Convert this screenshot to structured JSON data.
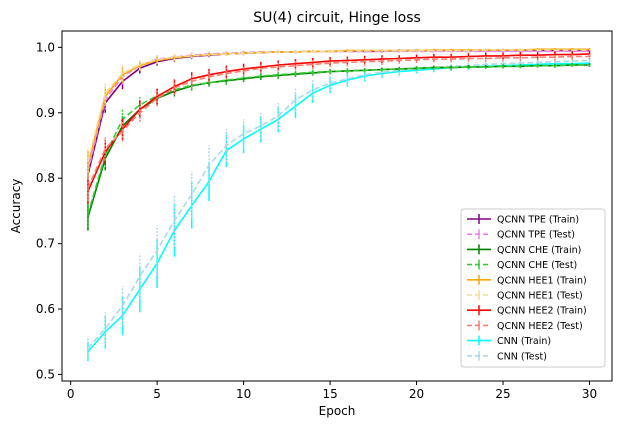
{
  "chart_data": {
    "type": "line",
    "title": "SU(4) circuit, Hinge loss",
    "xlabel": "Epoch",
    "ylabel": "Accuracy",
    "xlim": [
      -0.5,
      31.3
    ],
    "ylim": [
      0.49,
      1.025
    ],
    "xticks": [
      0,
      5,
      10,
      15,
      20,
      25,
      30
    ],
    "yticks": [
      0.5,
      0.6,
      0.7,
      0.8,
      0.9,
      1.0
    ],
    "ytick_labels": [
      "0.5",
      "0.6",
      "0.7",
      "0.8",
      "0.9",
      "1.0"
    ],
    "legend_position": "lower-right",
    "x": [
      1,
      2,
      3,
      4,
      5,
      6,
      7,
      8,
      9,
      10,
      11,
      12,
      13,
      14,
      15,
      16,
      17,
      18,
      19,
      20,
      21,
      22,
      23,
      24,
      25,
      26,
      27,
      28,
      29,
      30
    ],
    "series": [
      {
        "name": "QCNN TPE (Train)",
        "color": "#800080",
        "dashed": false,
        "values": [
          0.805,
          0.915,
          0.948,
          0.968,
          0.978,
          0.983,
          0.986,
          0.988,
          0.99,
          0.991,
          0.992,
          0.993,
          0.993,
          0.994,
          0.994,
          0.994,
          0.994,
          0.994,
          0.995,
          0.995,
          0.995,
          0.995,
          0.995,
          0.995,
          0.995,
          0.995,
          0.995,
          0.995,
          0.995,
          0.995
        ],
        "errors": [
          0.02,
          0.015,
          0.012,
          0.008,
          0.006,
          0.005,
          0.004,
          0.003,
          0.003,
          0.003,
          0.002,
          0.002,
          0.002,
          0.002,
          0.002,
          0.002,
          0.002,
          0.002,
          0.002,
          0.002,
          0.002,
          0.002,
          0.002,
          0.002,
          0.002,
          0.002,
          0.002,
          0.002,
          0.002,
          0.002
        ]
      },
      {
        "name": "QCNN TPE (Test)",
        "color": "#ee82ee",
        "dashed": true,
        "values": [
          0.81,
          0.92,
          0.955,
          0.972,
          0.982,
          0.985,
          0.988,
          0.99,
          0.991,
          0.992,
          0.993,
          0.993,
          0.993,
          0.994,
          0.994,
          0.994,
          0.994,
          0.994,
          0.994,
          0.994,
          0.994,
          0.994,
          0.994,
          0.994,
          0.994,
          0.994,
          0.994,
          0.994,
          0.994,
          0.994
        ],
        "errors": [
          0.02,
          0.015,
          0.012,
          0.008,
          0.006,
          0.005,
          0.004,
          0.003,
          0.003,
          0.003,
          0.002,
          0.002,
          0.002,
          0.002,
          0.002,
          0.002,
          0.002,
          0.002,
          0.002,
          0.002,
          0.002,
          0.002,
          0.002,
          0.002,
          0.002,
          0.002,
          0.002,
          0.002,
          0.002,
          0.002
        ]
      },
      {
        "name": "QCNN CHE (Train)",
        "color": "#008000",
        "dashed": false,
        "values": [
          0.74,
          0.83,
          0.88,
          0.905,
          0.922,
          0.933,
          0.941,
          0.946,
          0.949,
          0.952,
          0.955,
          0.957,
          0.959,
          0.961,
          0.963,
          0.964,
          0.965,
          0.966,
          0.967,
          0.968,
          0.969,
          0.969,
          0.97,
          0.97,
          0.971,
          0.971,
          0.972,
          0.972,
          0.973,
          0.973
        ],
        "errors": [
          0.02,
          0.018,
          0.015,
          0.012,
          0.01,
          0.008,
          0.007,
          0.006,
          0.006,
          0.005,
          0.005,
          0.005,
          0.004,
          0.004,
          0.004,
          0.004,
          0.003,
          0.003,
          0.003,
          0.003,
          0.003,
          0.003,
          0.003,
          0.003,
          0.003,
          0.003,
          0.003,
          0.003,
          0.003,
          0.003
        ]
      },
      {
        "name": "QCNN CHE (Test)",
        "color": "#32cd32",
        "dashed": true,
        "values": [
          0.745,
          0.835,
          0.89,
          0.912,
          0.926,
          0.935,
          0.942,
          0.946,
          0.95,
          0.953,
          0.956,
          0.958,
          0.96,
          0.962,
          0.963,
          0.964,
          0.965,
          0.966,
          0.967,
          0.968,
          0.969,
          0.969,
          0.97,
          0.97,
          0.971,
          0.971,
          0.972,
          0.972,
          0.973,
          0.973
        ],
        "errors": [
          0.02,
          0.018,
          0.015,
          0.012,
          0.01,
          0.008,
          0.007,
          0.006,
          0.006,
          0.005,
          0.005,
          0.005,
          0.004,
          0.004,
          0.004,
          0.004,
          0.003,
          0.003,
          0.003,
          0.003,
          0.003,
          0.003,
          0.003,
          0.003,
          0.003,
          0.003,
          0.003,
          0.003,
          0.003,
          0.003
        ]
      },
      {
        "name": "QCNN HEE1 (Train)",
        "color": "#ffa500",
        "dashed": false,
        "values": [
          0.82,
          0.925,
          0.958,
          0.972,
          0.98,
          0.984,
          0.987,
          0.989,
          0.99,
          0.991,
          0.992,
          0.993,
          0.993,
          0.994,
          0.994,
          0.995,
          0.995,
          0.995,
          0.995,
          0.995,
          0.996,
          0.996,
          0.996,
          0.996,
          0.996,
          0.996,
          0.997,
          0.997,
          0.997,
          0.997
        ],
        "errors": [
          0.022,
          0.015,
          0.012,
          0.008,
          0.006,
          0.005,
          0.004,
          0.003,
          0.003,
          0.003,
          0.002,
          0.002,
          0.002,
          0.002,
          0.002,
          0.002,
          0.002,
          0.002,
          0.002,
          0.002,
          0.002,
          0.002,
          0.002,
          0.002,
          0.002,
          0.002,
          0.002,
          0.002,
          0.002,
          0.002
        ]
      },
      {
        "name": "QCNN HEE1 (Test)",
        "color": "#eedd99",
        "dashed": true,
        "values": [
          0.825,
          0.93,
          0.96,
          0.974,
          0.981,
          0.985,
          0.987,
          0.989,
          0.99,
          0.991,
          0.992,
          0.993,
          0.993,
          0.994,
          0.994,
          0.994,
          0.995,
          0.995,
          0.995,
          0.995,
          0.995,
          0.995,
          0.995,
          0.996,
          0.996,
          0.996,
          0.996,
          0.996,
          0.996,
          0.996
        ],
        "errors": [
          0.022,
          0.015,
          0.012,
          0.008,
          0.006,
          0.005,
          0.004,
          0.003,
          0.003,
          0.003,
          0.002,
          0.002,
          0.002,
          0.002,
          0.002,
          0.002,
          0.002,
          0.002,
          0.002,
          0.002,
          0.002,
          0.002,
          0.002,
          0.002,
          0.002,
          0.002,
          0.002,
          0.002,
          0.002,
          0.002
        ]
      },
      {
        "name": "QCNN HEE2 (Train)",
        "color": "#ff0000",
        "dashed": false,
        "values": [
          0.78,
          0.84,
          0.875,
          0.905,
          0.925,
          0.94,
          0.952,
          0.958,
          0.963,
          0.967,
          0.97,
          0.973,
          0.975,
          0.977,
          0.979,
          0.98,
          0.981,
          0.982,
          0.983,
          0.984,
          0.985,
          0.985,
          0.986,
          0.987,
          0.987,
          0.988,
          0.988,
          0.989,
          0.989,
          0.99
        ],
        "errors": [
          0.02,
          0.018,
          0.016,
          0.014,
          0.012,
          0.011,
          0.01,
          0.009,
          0.009,
          0.008,
          0.008,
          0.007,
          0.007,
          0.007,
          0.006,
          0.006,
          0.006,
          0.006,
          0.005,
          0.005,
          0.005,
          0.005,
          0.005,
          0.005,
          0.005,
          0.005,
          0.005,
          0.005,
          0.005,
          0.005
        ]
      },
      {
        "name": "QCNN HEE2 (Test)",
        "color": "#fa8072",
        "dashed": true,
        "values": [
          0.785,
          0.845,
          0.872,
          0.9,
          0.922,
          0.938,
          0.948,
          0.955,
          0.96,
          0.964,
          0.968,
          0.97,
          0.972,
          0.974,
          0.976,
          0.977,
          0.978,
          0.979,
          0.98,
          0.981,
          0.982,
          0.982,
          0.983,
          0.983,
          0.984,
          0.984,
          0.985,
          0.985,
          0.986,
          0.986
        ],
        "errors": [
          0.02,
          0.018,
          0.016,
          0.014,
          0.012,
          0.011,
          0.01,
          0.009,
          0.009,
          0.008,
          0.008,
          0.007,
          0.007,
          0.007,
          0.006,
          0.006,
          0.006,
          0.006,
          0.005,
          0.005,
          0.005,
          0.005,
          0.005,
          0.005,
          0.005,
          0.005,
          0.005,
          0.005,
          0.005,
          0.005
        ]
      },
      {
        "name": "CNN (Train)",
        "color": "#00ffff",
        "dashed": false,
        "values": [
          0.535,
          0.565,
          0.59,
          0.63,
          0.67,
          0.72,
          0.758,
          0.795,
          0.842,
          0.86,
          0.875,
          0.89,
          0.91,
          0.93,
          0.942,
          0.95,
          0.956,
          0.96,
          0.963,
          0.965,
          0.967,
          0.969,
          0.97,
          0.971,
          0.972,
          0.973,
          0.974,
          0.975,
          0.975,
          0.976
        ],
        "errors": [
          0.015,
          0.025,
          0.03,
          0.035,
          0.038,
          0.04,
          0.035,
          0.03,
          0.025,
          0.022,
          0.02,
          0.02,
          0.018,
          0.015,
          0.012,
          0.01,
          0.008,
          0.007,
          0.006,
          0.005,
          0.005,
          0.005,
          0.004,
          0.004,
          0.004,
          0.004,
          0.004,
          0.004,
          0.004,
          0.004
        ]
      },
      {
        "name": "CNN (Test)",
        "color": "#add8e6",
        "dashed": true,
        "values": [
          0.54,
          0.57,
          0.605,
          0.65,
          0.69,
          0.735,
          0.775,
          0.82,
          0.85,
          0.868,
          0.88,
          0.895,
          0.92,
          0.935,
          0.945,
          0.952,
          0.958,
          0.962,
          0.965,
          0.967,
          0.969,
          0.971,
          0.972,
          0.974,
          0.975,
          0.976,
          0.977,
          0.978,
          0.979,
          0.98
        ],
        "errors": [
          0.015,
          0.025,
          0.03,
          0.035,
          0.038,
          0.04,
          0.035,
          0.03,
          0.025,
          0.022,
          0.02,
          0.02,
          0.018,
          0.015,
          0.012,
          0.01,
          0.008,
          0.007,
          0.006,
          0.005,
          0.005,
          0.005,
          0.004,
          0.004,
          0.004,
          0.004,
          0.004,
          0.004,
          0.004,
          0.004
        ]
      }
    ]
  }
}
